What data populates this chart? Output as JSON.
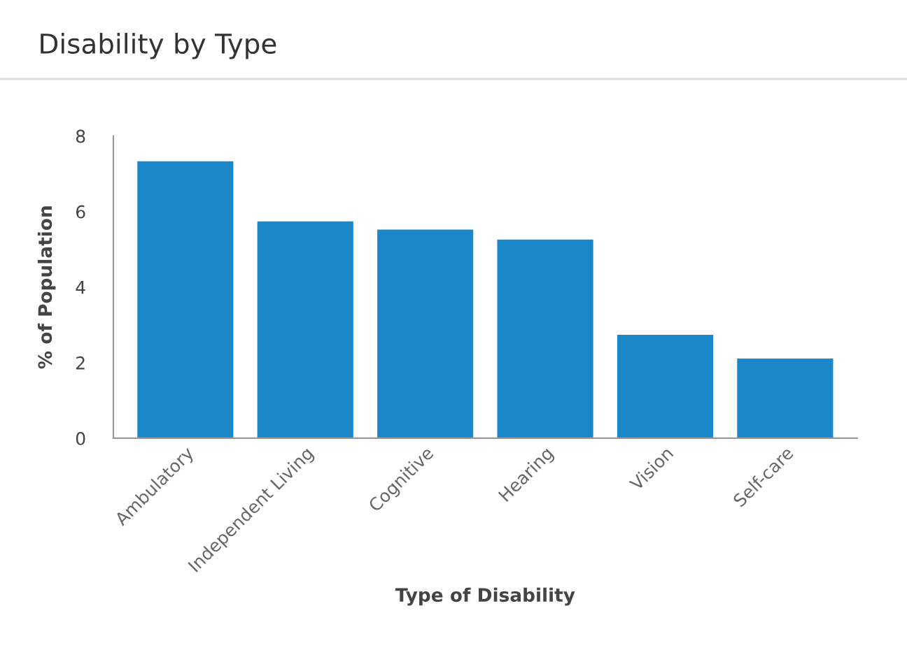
{
  "chart_data": {
    "type": "bar",
    "title": "Disability by Type",
    "xlabel": "Type of Disability",
    "ylabel": "% of Population",
    "categories": [
      "Ambulatory",
      "Independent Living",
      "Cognitive",
      "Hearing",
      "Vision",
      "Self-care"
    ],
    "values": [
      7.33,
      5.74,
      5.52,
      5.26,
      2.74,
      2.11
    ],
    "color": "#1a87c9",
    "ylim": [
      0,
      8
    ],
    "yticks": [
      0,
      2,
      4,
      6,
      8
    ],
    "grid": false
  }
}
